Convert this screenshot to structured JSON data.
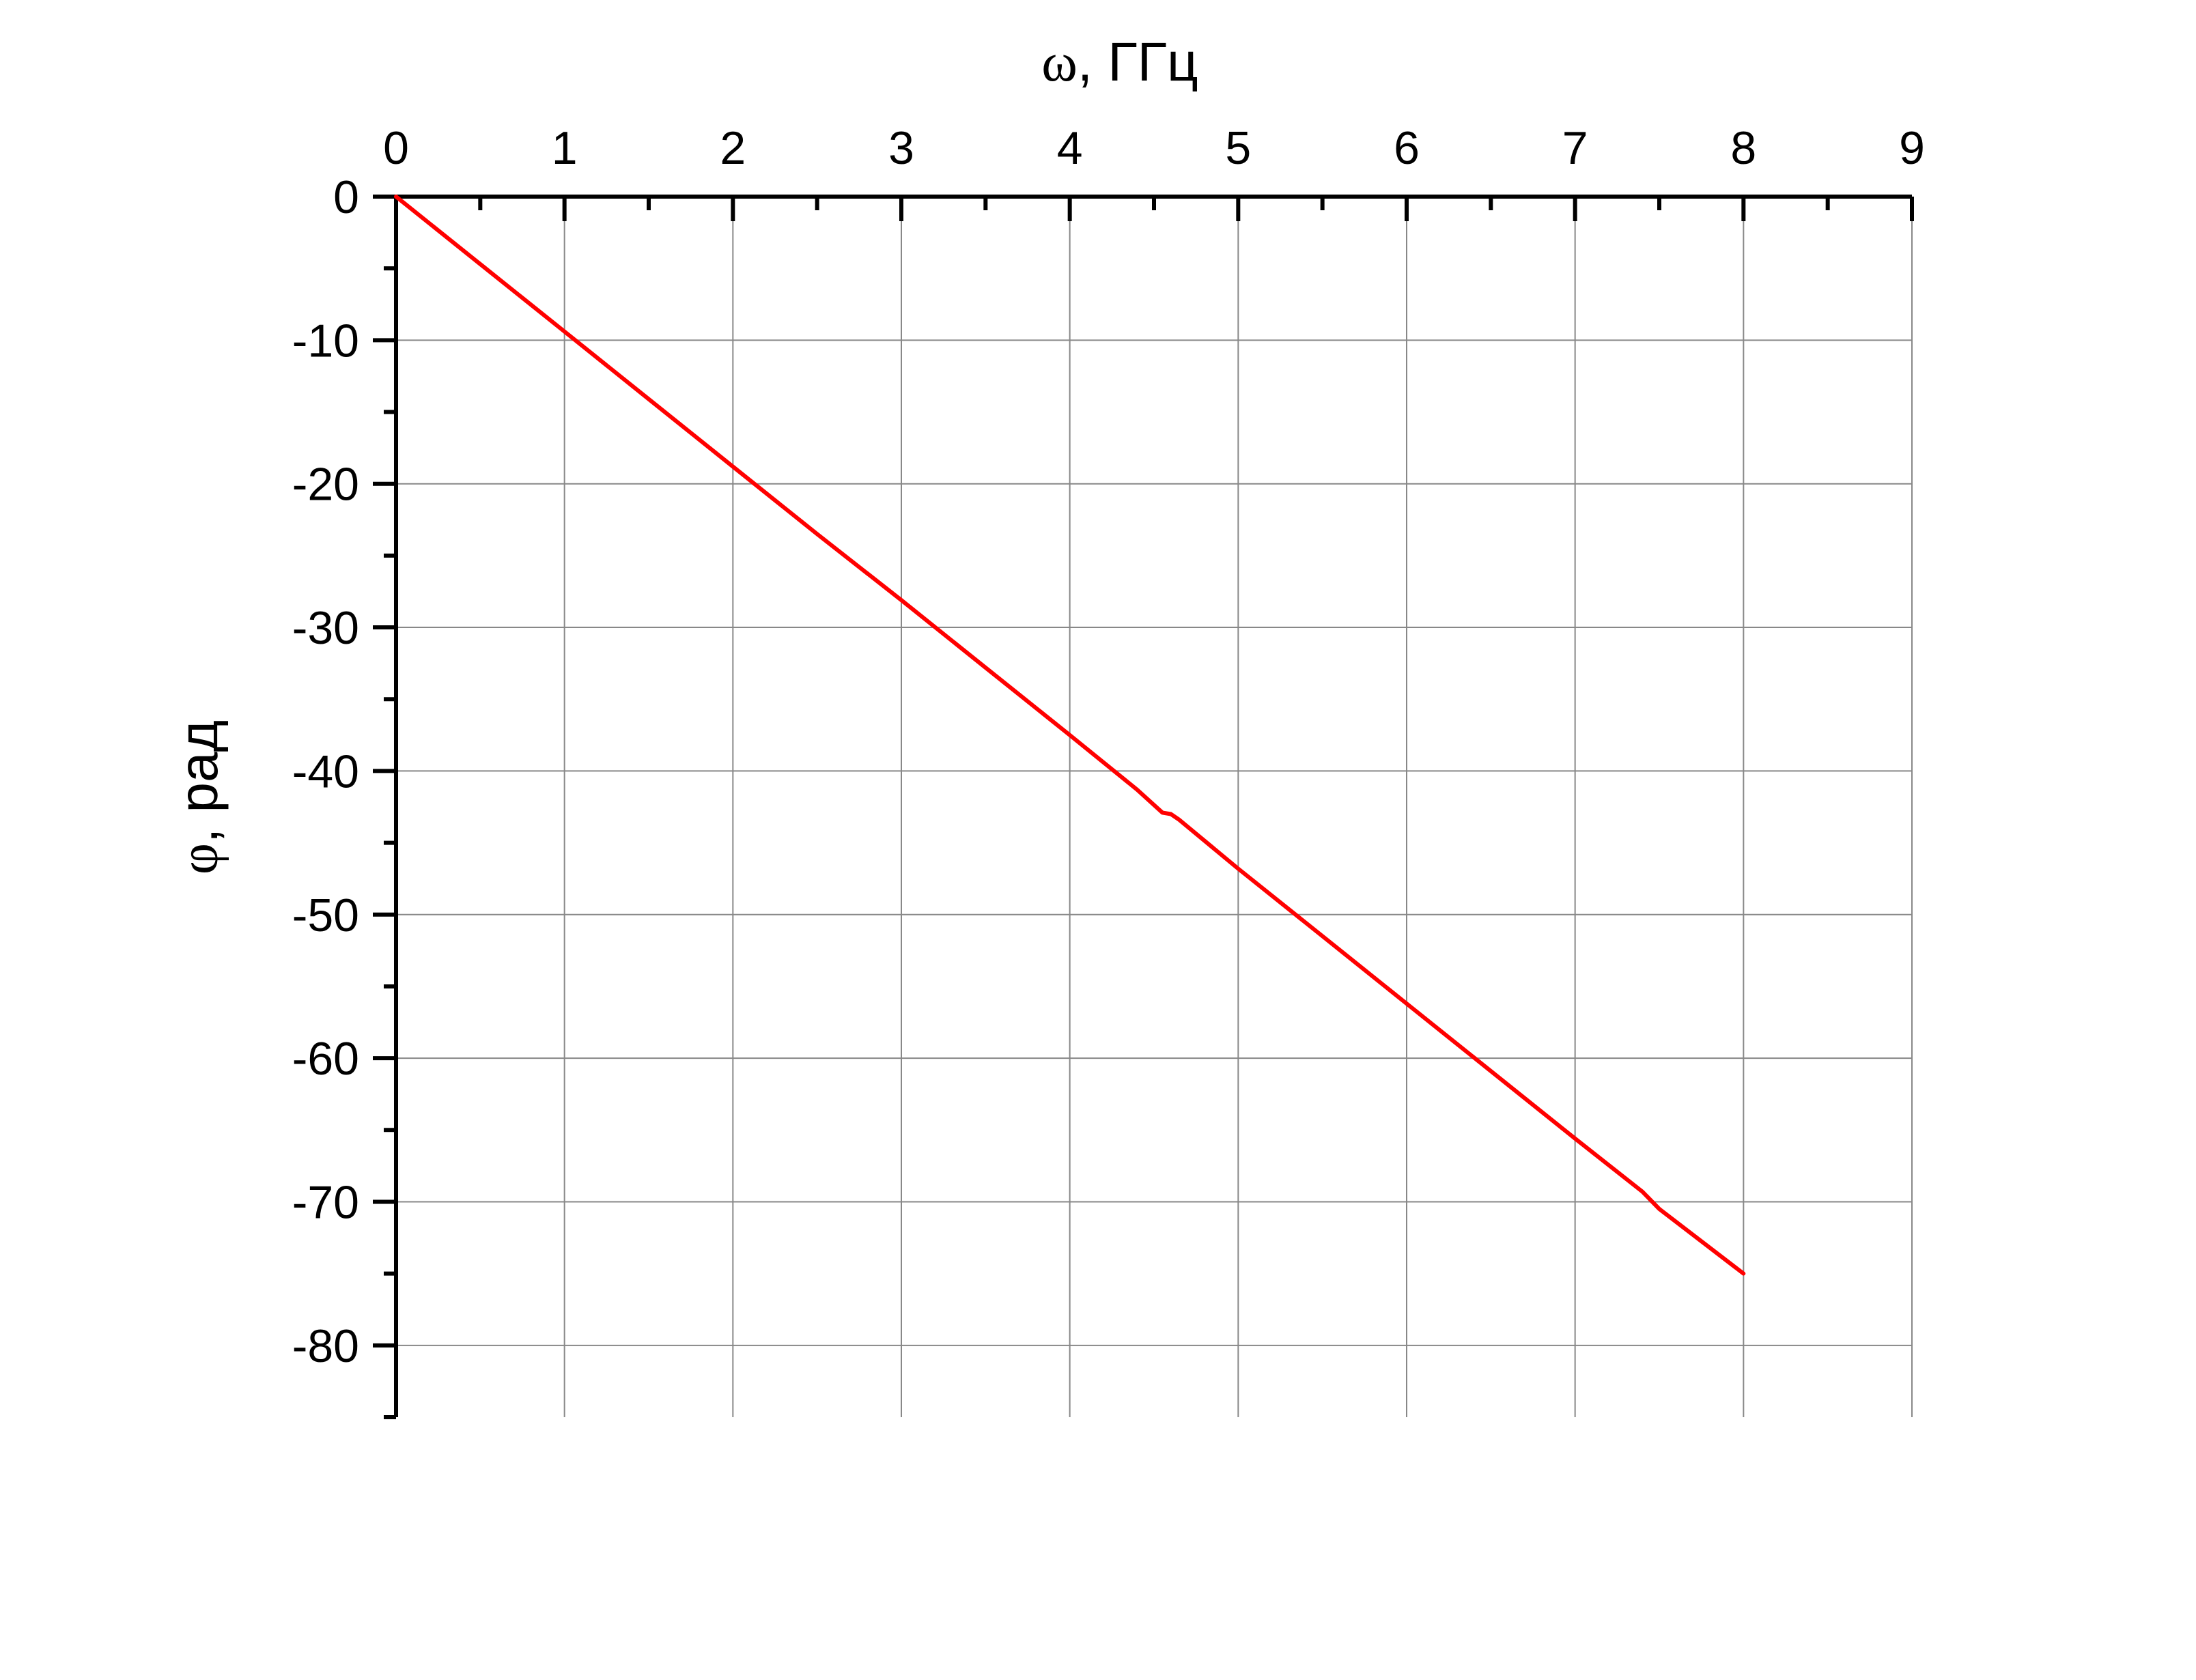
{
  "chart_data": {
    "type": "line",
    "xlabel_symbol": "ω",
    "xlabel_unit": ", ГГц",
    "ylabel_symbol": "φ",
    "ylabel_unit": ", рад",
    "xlim": [
      0,
      9
    ],
    "ylim": [
      -85,
      0
    ],
    "x_ticks": [
      0,
      1,
      2,
      3,
      4,
      5,
      6,
      7,
      8,
      9
    ],
    "x_tick_labels": [
      "0",
      "1",
      "2",
      "3",
      "4",
      "5",
      "6",
      "7",
      "8",
      "9"
    ],
    "y_ticks": [
      0,
      -10,
      -20,
      -30,
      -40,
      -50,
      -60,
      -70,
      -80
    ],
    "y_tick_labels": [
      "0",
      "-10",
      "-20",
      "-30",
      "-40",
      "-50",
      "-60",
      "-70",
      "-80"
    ],
    "x_axis_position": "top",
    "grid": true,
    "series": [
      {
        "color": "#ff0000",
        "x": [
          0,
          0.5,
          1,
          1.5,
          2,
          2.5,
          3,
          3.5,
          4,
          4.4,
          4.55,
          4.6,
          4.65,
          5,
          5.5,
          6,
          6.5,
          7,
          7.4,
          7.5,
          8
        ],
        "y": [
          0,
          -4.7,
          -9.4,
          -14.1,
          -18.8,
          -23.5,
          -28.1,
          -32.8,
          -37.5,
          -41.3,
          -42.9,
          -43.0,
          -43.4,
          -46.8,
          -51.5,
          -56.2,
          -60.9,
          -65.6,
          -69.3,
          -70.5,
          -75.0
        ]
      }
    ],
    "colors": {
      "grid": "#888888",
      "axis": "#000000",
      "line": "#ff0000"
    }
  }
}
